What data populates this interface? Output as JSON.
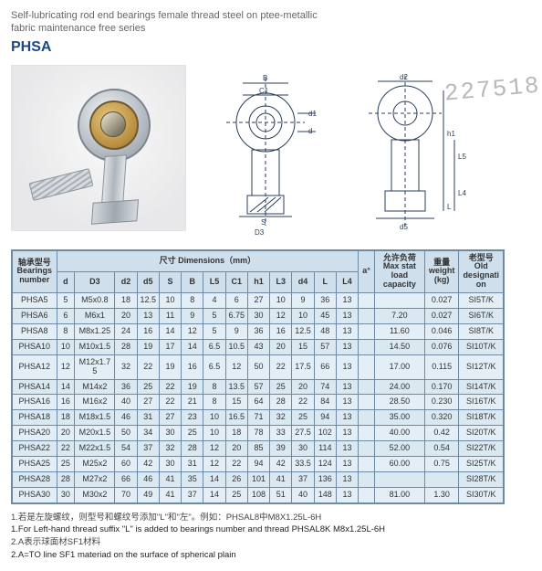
{
  "watermark": "227518",
  "header": {
    "subtitle_line1": "Self-lubricating rod end bearings female thread steel on ptee-metallic",
    "subtitle_line2": "fabric maintenance free series",
    "series": "PHSA"
  },
  "drawings": {
    "front_labels": [
      "B",
      "C1",
      "d1",
      "d",
      "S",
      "D3"
    ],
    "side_labels": [
      "d2",
      "h1",
      "L5",
      "L4",
      "L",
      "d5"
    ]
  },
  "table": {
    "group_dim_label": "尺寸    Dimensions（mm）",
    "alpha_label": "a°",
    "max_label_top": "允许负荷",
    "max_label_en": "Max stat load capacity",
    "weight_label_top": "重量",
    "weight_label_en": "weight (kg)",
    "old_label_top": "老型号",
    "old_label_en": "Old designation",
    "bn_top": "轴承型号",
    "bn_en": "Bearings number",
    "dim_cols": [
      "d",
      "D3",
      "d2",
      "d5",
      "S",
      "B",
      "L5",
      "C1",
      "h1",
      "L3",
      "d4",
      "L",
      "L4"
    ],
    "rows": [
      {
        "bn": "PHSA5",
        "v": [
          "5",
          "M5x0.8",
          "18",
          "12.5",
          "10",
          "8",
          "4",
          "6",
          "27",
          "10",
          "9",
          "36",
          "13"
        ],
        "a": "",
        "max": "",
        "wt": "0.027",
        "old": "SI5T/K"
      },
      {
        "bn": "PHSA6",
        "v": [
          "6",
          "M6x1",
          "20",
          "13",
          "11",
          "9",
          "5",
          "6.75",
          "30",
          "12",
          "10",
          "45",
          "13"
        ],
        "a": "",
        "max": "7.20",
        "wt": "0.027",
        "old": "SI6T/K"
      },
      {
        "bn": "PHSA8",
        "v": [
          "8",
          "M8x1.25",
          "24",
          "16",
          "14",
          "12",
          "5",
          "9",
          "36",
          "16",
          "12.5",
          "48",
          "13"
        ],
        "a": "",
        "max": "11.60",
        "wt": "0.046",
        "old": "SI8T/K"
      },
      {
        "bn": "PHSA10",
        "v": [
          "10",
          "M10x1.5",
          "28",
          "19",
          "17",
          "14",
          "6.5",
          "10.5",
          "43",
          "20",
          "15",
          "57",
          "13"
        ],
        "a": "",
        "max": "14.50",
        "wt": "0.076",
        "old": "SI10T/K"
      },
      {
        "bn": "PHSA12",
        "v": [
          "12",
          "M12x1.75",
          "32",
          "22",
          "19",
          "16",
          "6.5",
          "12",
          "50",
          "22",
          "17.5",
          "66",
          "13"
        ],
        "a": "",
        "max": "17.00",
        "wt": "0.115",
        "old": "SI12T/K"
      },
      {
        "bn": "PHSA14",
        "v": [
          "14",
          "M14x2",
          "36",
          "25",
          "22",
          "19",
          "8",
          "13.5",
          "57",
          "25",
          "20",
          "74",
          "13"
        ],
        "a": "",
        "max": "24.00",
        "wt": "0.170",
        "old": "SI14T/K"
      },
      {
        "bn": "PHSA16",
        "v": [
          "16",
          "M16x2",
          "40",
          "27",
          "22",
          "21",
          "8",
          "15",
          "64",
          "28",
          "22",
          "84",
          "13"
        ],
        "a": "",
        "max": "28.50",
        "wt": "0.230",
        "old": "SI16T/K"
      },
      {
        "bn": "PHSA18",
        "v": [
          "18",
          "M18x1.5",
          "46",
          "31",
          "27",
          "23",
          "10",
          "16.5",
          "71",
          "32",
          "25",
          "94",
          "13"
        ],
        "a": "",
        "max": "35.00",
        "wt": "0.320",
        "old": "SI18T/K"
      },
      {
        "bn": "PHSA20",
        "v": [
          "20",
          "M20x1.5",
          "50",
          "34",
          "30",
          "25",
          "10",
          "18",
          "78",
          "33",
          "27.5",
          "102",
          "13"
        ],
        "a": "",
        "max": "40.00",
        "wt": "0.42",
        "old": "SI20T/K"
      },
      {
        "bn": "PHSA22",
        "v": [
          "22",
          "M22x1.5",
          "54",
          "37",
          "32",
          "28",
          "12",
          "20",
          "85",
          "39",
          "30",
          "114",
          "13"
        ],
        "a": "",
        "max": "52.00",
        "wt": "0.54",
        "old": "SI22T/K"
      },
      {
        "bn": "PHSA25",
        "v": [
          "25",
          "M25x2",
          "60",
          "42",
          "30",
          "31",
          "12",
          "22",
          "94",
          "42",
          "33.5",
          "124",
          "13"
        ],
        "a": "",
        "max": "60.00",
        "wt": "0.75",
        "old": "SI25T/K"
      },
      {
        "bn": "PHSA28",
        "v": [
          "28",
          "M27x2",
          "66",
          "46",
          "41",
          "35",
          "14",
          "26",
          "101",
          "41",
          "37",
          "136",
          "13"
        ],
        "a": "",
        "max": "",
        "wt": "",
        "old": "SI28T/K"
      },
      {
        "bn": "PHSA30",
        "v": [
          "30",
          "M30x2",
          "70",
          "49",
          "41",
          "37",
          "14",
          "25",
          "108",
          "51",
          "40",
          "148",
          "13"
        ],
        "a": "",
        "max": "81.00",
        "wt": "1.30",
        "old": "SI30T/K"
      }
    ]
  },
  "notes": {
    "n1_cn": "1.若是左旋螺纹，则型号和螺纹号添加\"L\"和\"左\"。例如：PHSAL8中M8X1.25L-6H",
    "n1_en": "1.For Left-hand thread suffix \"L\" is added to bearings number and thread PHSAL8K M8x1.25L-6H",
    "n2_cn": "2.A表示球面材SF1材料",
    "n2_en": "2.A=TO line SF1 materiad on the surface of spherical plain"
  }
}
